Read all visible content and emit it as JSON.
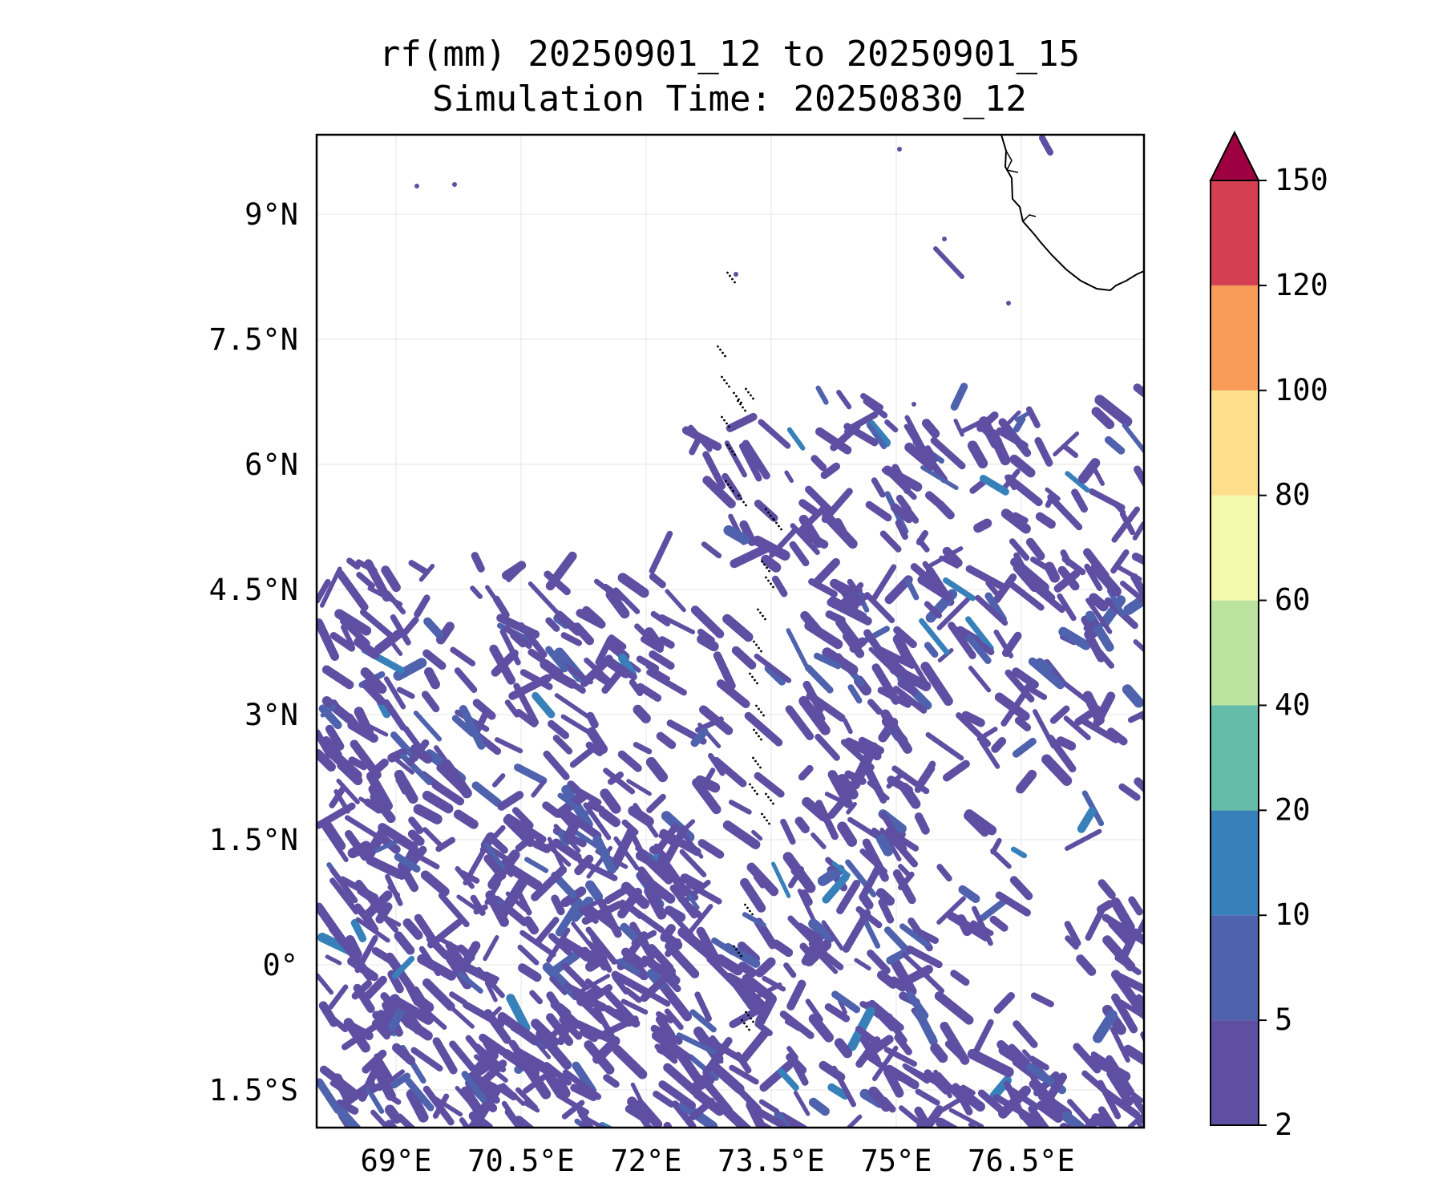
{
  "map": {
    "title_line1": "rf(mm) 20250901_12 to 20250901_15",
    "title_line2": "Simulation Time: 20250830_12",
    "lon_ticks": [
      "69°E",
      "70.5°E",
      "72°E",
      "73.5°E",
      "75°E",
      "76.5°E"
    ],
    "lat_ticks": [
      "9°N",
      "7.5°N",
      "6°N",
      "4.5°N",
      "3°N",
      "1.5°N",
      "0°",
      "1.5°S"
    ],
    "colorbar": {
      "levels": [
        "2",
        "5",
        "10",
        "20",
        "40",
        "60",
        "80",
        "100",
        "120",
        "150"
      ],
      "colors": [
        "#5e4fa2",
        "#4e62ad",
        "#3880b9",
        "#65bca8",
        "#bbe29e",
        "#f3faae",
        "#fddf8b",
        "#f99c59",
        "#d4404f",
        "#9e0142"
      ],
      "extend": "max"
    },
    "rain_color_low": "#5e4fa2",
    "rain_color_mid": "#4e62ad",
    "rain_color_hi": "#3880b9"
  }
}
